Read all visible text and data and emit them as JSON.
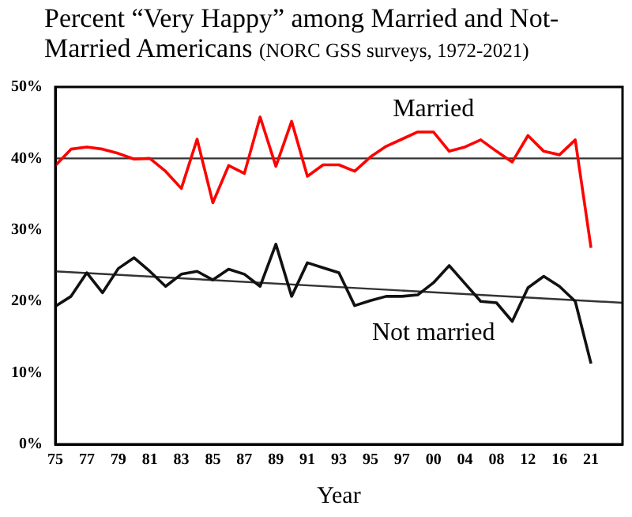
{
  "chart_data": {
    "type": "line",
    "title": "Percent “Very Happy” among Married and  Not-Married Americans",
    "subtitle": "(NORC GSS surveys, 1972-2021)",
    "xlabel": "Year",
    "categories": [
      "75",
      null,
      "77",
      null,
      "79",
      null,
      "81",
      null,
      "83",
      null,
      "85",
      null,
      "87",
      null,
      "89",
      null,
      "91",
      null,
      "93",
      null,
      "95",
      null,
      "97",
      null,
      "00",
      null,
      "04",
      null,
      "08",
      null,
      "12",
      null,
      "16",
      null,
      "21",
      null,
      null
    ],
    "series": [
      {
        "name": "Married",
        "color": "#ff0000",
        "values": [
          39.0,
          41.3,
          41.6,
          41.3,
          40.7,
          39.9,
          40.0,
          38.2,
          35.8,
          42.7,
          33.8,
          39.0,
          37.9,
          45.8,
          38.9,
          45.2,
          37.5,
          39.1,
          39.1,
          38.2,
          40.2,
          41.7,
          42.7,
          43.7,
          43.7,
          41.0,
          41.6,
          42.6,
          41.0,
          39.5,
          43.2,
          41.0,
          40.5,
          42.6,
          27.5,
          null,
          null
        ]
      },
      {
        "name": "Not married",
        "color": "#111111",
        "values": [
          19.3,
          20.7,
          24.0,
          21.2,
          24.6,
          26.1,
          24.2,
          22.1,
          23.8,
          24.2,
          23.0,
          24.5,
          23.8,
          22.1,
          28.0,
          20.7,
          25.4,
          24.7,
          24.0,
          19.4,
          20.1,
          20.7,
          20.7,
          20.9,
          22.6,
          25.0,
          22.5,
          20.0,
          19.8,
          17.2,
          21.9,
          23.5,
          22.1,
          20.0,
          11.3,
          null,
          null
        ]
      },
      {
        "type": "line",
        "color": "#333333",
        "values": [
          40,
          null,
          null,
          null,
          null,
          null,
          null,
          null,
          null,
          null,
          null,
          null,
          null,
          null,
          null,
          null,
          null,
          null,
          null,
          null,
          null,
          null,
          null,
          null,
          null,
          null,
          null,
          null,
          null,
          null,
          null,
          null,
          null,
          null,
          null,
          null,
          40
        ]
      },
      {
        "type": "line",
        "color": "#333333",
        "values": [
          24.2,
          null,
          null,
          null,
          null,
          null,
          null,
          null,
          null,
          null,
          null,
          null,
          null,
          null,
          null,
          null,
          null,
          null,
          null,
          null,
          null,
          null,
          null,
          null,
          null,
          null,
          null,
          null,
          null,
          null,
          null,
          null,
          null,
          null,
          null,
          null,
          19.8
        ]
      }
    ],
    "ylim": [
      0,
      50
    ],
    "yticks": [
      {
        "value": 0,
        "label": "0%"
      },
      {
        "value": 10,
        "label": "10%"
      },
      {
        "value": 20,
        "label": "20%"
      },
      {
        "value": 30,
        "label": "30%"
      },
      {
        "value": 40,
        "label": "40%"
      },
      {
        "value": 50,
        "label": "50%"
      }
    ],
    "marker": "none"
  }
}
